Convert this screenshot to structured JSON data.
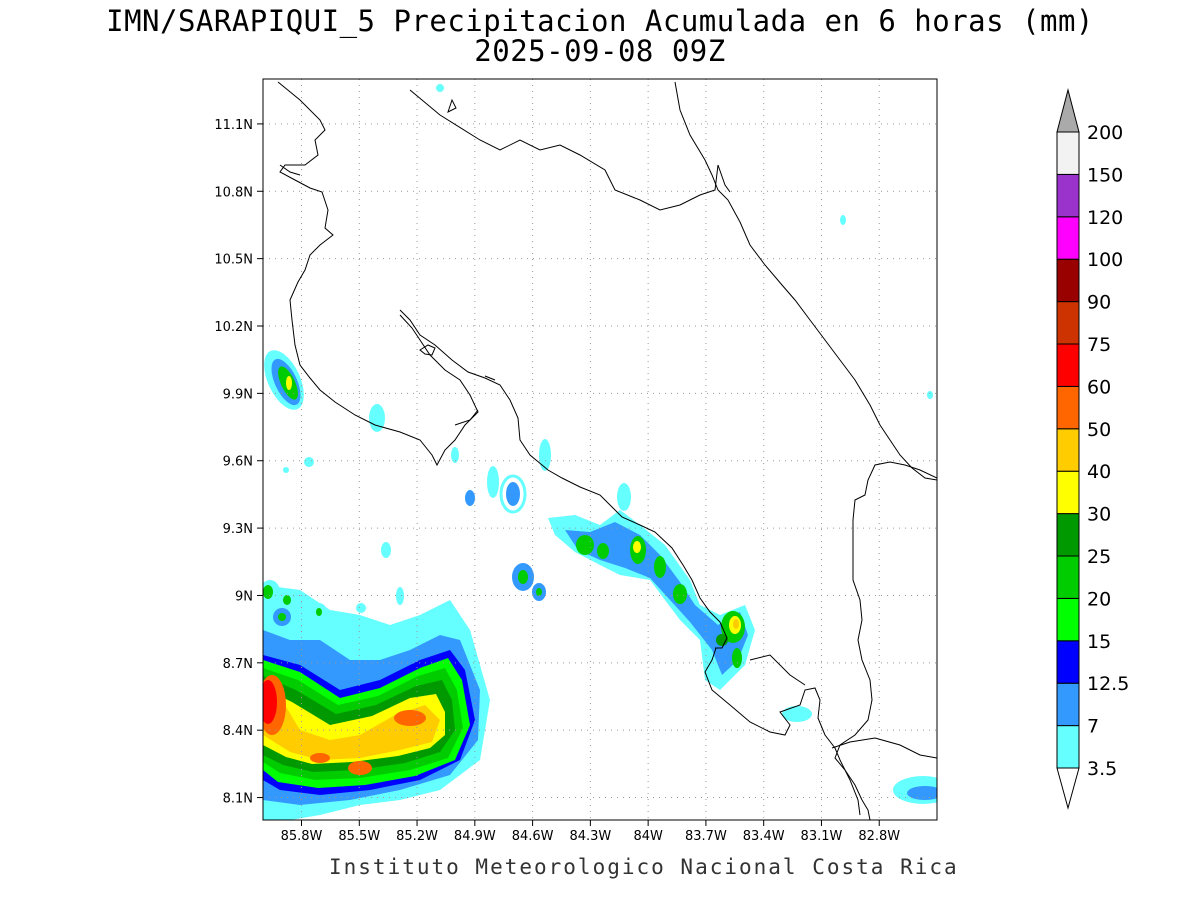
{
  "title": {
    "line1": "IMN/SARAPIQUI_5 Precipitacion Acumulada en 6 horas (mm)",
    "line2": "2025-09-08 09Z"
  },
  "footer": {
    "credit": "Instituto Meteorologico Nacional Costa Rica"
  },
  "map": {
    "lat_range": [
      8.0,
      11.3
    ],
    "lon_range": [
      -86.0,
      -82.5
    ],
    "gridlines": true,
    "lat_ticks": [
      {
        "value": 11.1,
        "label": "11.1N"
      },
      {
        "value": 10.8,
        "label": "10.8N"
      },
      {
        "value": 10.5,
        "label": "10.5N"
      },
      {
        "value": 10.2,
        "label": "10.2N"
      },
      {
        "value": 9.9,
        "label": "9.9N"
      },
      {
        "value": 9.6,
        "label": "9.6N"
      },
      {
        "value": 9.3,
        "label": "9.3N"
      },
      {
        "value": 9.0,
        "label": "9N"
      },
      {
        "value": 8.7,
        "label": "8.7N"
      },
      {
        "value": 8.4,
        "label": "8.4N"
      },
      {
        "value": 8.1,
        "label": "8.1N"
      }
    ],
    "lon_ticks": [
      {
        "value": -85.8,
        "label": "85.8W"
      },
      {
        "value": -85.5,
        "label": "85.5W"
      },
      {
        "value": -85.2,
        "label": "85.2W"
      },
      {
        "value": -84.9,
        "label": "84.9W"
      },
      {
        "value": -84.6,
        "label": "84.6W"
      },
      {
        "value": -84.3,
        "label": "84.3W"
      },
      {
        "value": -84.0,
        "label": "84W"
      },
      {
        "value": -83.7,
        "label": "83.7W"
      },
      {
        "value": -83.4,
        "label": "83.4W"
      },
      {
        "value": -83.1,
        "label": "83.1W"
      },
      {
        "value": -82.8,
        "label": "82.8W"
      }
    ]
  },
  "colorbar": {
    "levels": [
      "3.5",
      "7",
      "12.5",
      "15",
      "20",
      "25",
      "30",
      "40",
      "50",
      "60",
      "75",
      "90",
      "100",
      "120",
      "150",
      "200"
    ],
    "colors": [
      "#66ffff",
      "#3399ff",
      "#0000ff",
      "#00ff00",
      "#00cc00",
      "#009900",
      "#ffff00",
      "#ffcc00",
      "#ff6600",
      "#ff0000",
      "#cc3300",
      "#990000",
      "#ff00ff",
      "#9933cc",
      "#f2f2f2",
      "#aaaaaa"
    ]
  },
  "precip_cells": [
    {
      "lon": -85.93,
      "lat": 8.48,
      "rx_deg": 0.22,
      "ry_deg": 0.25,
      "level": 9
    },
    {
      "lon": -85.55,
      "lat": 8.38,
      "rx_deg": 0.6,
      "ry_deg": 0.22,
      "level": 6
    },
    {
      "lon": -85.15,
      "lat": 8.45,
      "rx_deg": 0.5,
      "ry_deg": 0.2,
      "level": 7
    },
    {
      "lon": -84.03,
      "lat": 9.19,
      "rx_deg": 0.06,
      "ry_deg": 0.07,
      "level": 3
    },
    {
      "lon": -83.55,
      "lat": 8.84,
      "rx_deg": 0.07,
      "ry_deg": 0.08,
      "level": 6
    },
    {
      "lon": -85.89,
      "lat": 9.94,
      "rx_deg": 0.06,
      "ry_deg": 0.1,
      "level": 4
    }
  ]
}
